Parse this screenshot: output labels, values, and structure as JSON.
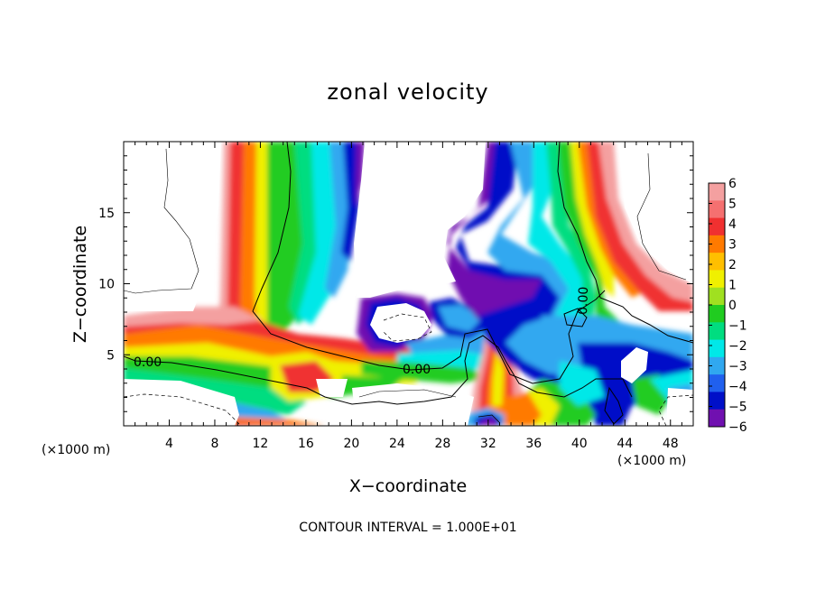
{
  "chart_data": {
    "type": "heatmap",
    "title": "zonal velocity",
    "xlabel": "X−coordinate",
    "ylabel": "Z−coordinate",
    "x_unit": "(×1000 m)",
    "footer": "CONTOUR INTERVAL = 1.000E+01",
    "xlim": [
      0,
      50
    ],
    "ylim": [
      0,
      20
    ],
    "x_ticks": [
      "4",
      "8",
      "12",
      "16",
      "20",
      "24",
      "28",
      "32",
      "36",
      "40",
      "44",
      "48"
    ],
    "y_ticks": [
      "5",
      "10",
      "15"
    ],
    "contour_labels": [
      "0.00",
      "0.00",
      "0.00"
    ],
    "colorbar": {
      "labels": [
        "6",
        "5",
        "4",
        "3",
        "2",
        "1",
        "0",
        "−1",
        "−2",
        "−3",
        "−4",
        "−5",
        "−6"
      ],
      "range": [
        -6,
        6
      ],
      "colors": [
        "#f4a0a0",
        "#f57070",
        "#f03030",
        "#ff7a00",
        "#ffbf00",
        "#f0f000",
        "#a0e020",
        "#20cc20",
        "#00dd80",
        "#00e8e8",
        "#30a8f0",
        "#2060ee",
        "#0010c8",
        "#7010b0"
      ]
    }
  }
}
